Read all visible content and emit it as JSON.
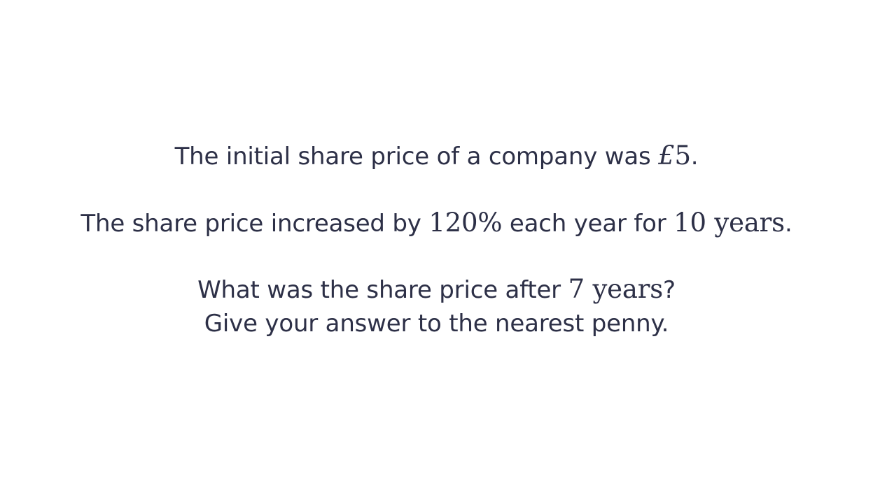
{
  "question": {
    "line1": {
      "text": "The initial share price of a company was ",
      "currency_symbol": "£",
      "amount": "5",
      "end": "."
    },
    "line2": {
      "text": "The share price increased by ",
      "percent": "120%",
      "middle": " each year for ",
      "years": "10",
      "unit": "years",
      "end": "."
    },
    "line3": {
      "text": "What was the share price after ",
      "years": "7",
      "unit": "years",
      "end": "?"
    },
    "line4": {
      "text": "Give your answer to the nearest penny."
    }
  }
}
